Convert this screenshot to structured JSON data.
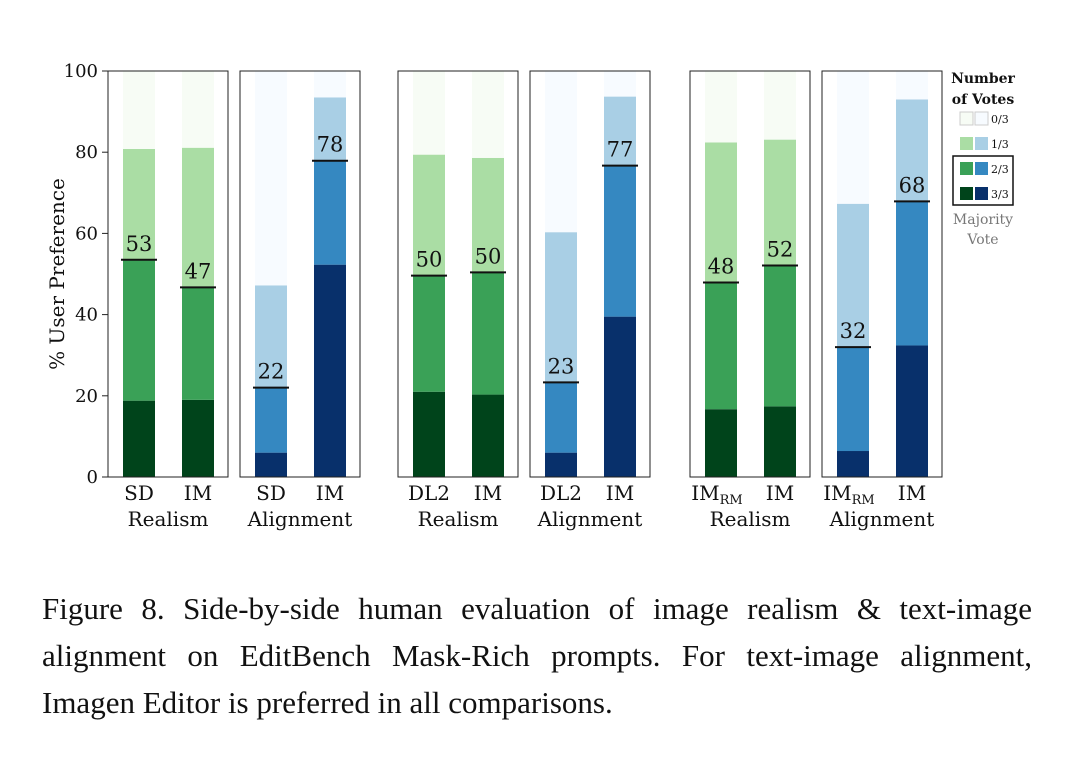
{
  "chart_data": {
    "type": "bar",
    "stacked": true,
    "ylabel": "% User Preference",
    "ylim": [
      0,
      100
    ],
    "yticks": [
      0,
      20,
      40,
      60,
      80,
      100
    ],
    "grid": false,
    "legend": {
      "position": "right",
      "title_line1": "Number",
      "title_line2": "of Votes",
      "entries": [
        "0/3",
        "1/3",
        "2/3",
        "3/3"
      ],
      "note_line1": "Majority",
      "note_line2": "Vote"
    },
    "colors": {
      "green": [
        "#f7fcf5",
        "#aadda4",
        "#3aa157",
        "#00441b"
      ],
      "blue": [
        "#f7fbff",
        "#a9cfe5",
        "#3588c1",
        "#08306b"
      ],
      "divider": "#111111"
    },
    "panels": [
      {
        "title": "Realism",
        "palette": "green",
        "bars": [
          {
            "label": "SD",
            "sub": "",
            "s3": 18.8,
            "s2": 53.5,
            "s1": 80.8,
            "value": "53"
          },
          {
            "label": "IM",
            "sub": "",
            "s3": 19.0,
            "s2": 46.7,
            "s1": 81.1,
            "value": "47"
          }
        ]
      },
      {
        "title": "Alignment",
        "palette": "blue",
        "bars": [
          {
            "label": "SD",
            "sub": "",
            "s3": 6.0,
            "s2": 22.0,
            "s1": 47.2,
            "value": "22"
          },
          {
            "label": "IM",
            "sub": "",
            "s3": 52.3,
            "s2": 77.9,
            "s1": 93.5,
            "value": "78"
          }
        ]
      },
      {
        "title": "Realism",
        "palette": "green",
        "bars": [
          {
            "label": "DL2",
            "sub": "",
            "s3": 21.0,
            "s2": 49.6,
            "s1": 79.4,
            "value": "50"
          },
          {
            "label": "IM",
            "sub": "",
            "s3": 20.3,
            "s2": 50.4,
            "s1": 78.6,
            "value": "50"
          }
        ]
      },
      {
        "title": "Alignment",
        "palette": "blue",
        "bars": [
          {
            "label": "DL2",
            "sub": "",
            "s3": 6.0,
            "s2": 23.3,
            "s1": 60.3,
            "value": "23"
          },
          {
            "label": "IM",
            "sub": "",
            "s3": 39.5,
            "s2": 76.7,
            "s1": 93.7,
            "value": "77"
          }
        ]
      },
      {
        "title": "Realism",
        "palette": "green",
        "bars": [
          {
            "label": "IM",
            "sub": "RM",
            "s3": 16.7,
            "s2": 47.9,
            "s1": 82.4,
            "value": "48"
          },
          {
            "label": "IM",
            "sub": "",
            "s3": 17.4,
            "s2": 52.1,
            "s1": 83.1,
            "value": "52"
          }
        ]
      },
      {
        "title": "Alignment",
        "palette": "blue",
        "bars": [
          {
            "label": "IM",
            "sub": "RM",
            "s3": 6.4,
            "s2": 32.0,
            "s1": 67.3,
            "value": "32"
          },
          {
            "label": "IM",
            "sub": "",
            "s3": 32.4,
            "s2": 67.9,
            "s1": 93.0,
            "value": "68"
          }
        ]
      }
    ]
  },
  "caption": "Figure 8. Side-by-side human evaluation of image realism & text-image alignment on EditBench Mask-Rich prompts. For text-image alignment, Imagen Editor is preferred in all comparisons."
}
